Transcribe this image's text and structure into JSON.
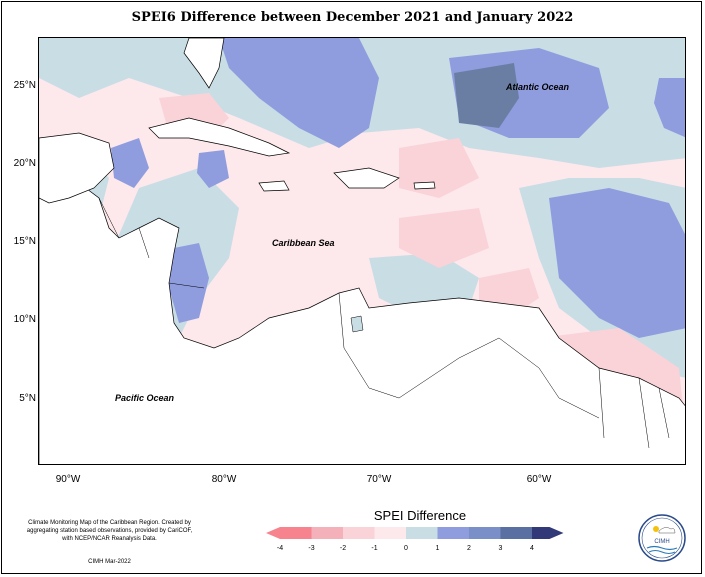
{
  "title": "SPEI6 Difference between December 2021 and January 2022",
  "map": {
    "lat_labels": [
      "25°N",
      "20°N",
      "15°N",
      "10°N",
      "5°N"
    ],
    "lon_labels": [
      "90°W",
      "80°W",
      "70°W",
      "60°W"
    ],
    "ocean_labels": {
      "atlantic": "Atlantic Ocean",
      "caribbean": "Caribbean Sea",
      "pacific": "Pacific Ocean"
    }
  },
  "legend": {
    "title": "SPEI Difference",
    "ticks": [
      "-4",
      "-3",
      "-2",
      "-1",
      "0",
      "1",
      "2",
      "3",
      "4"
    ],
    "colors": [
      "#f6838e",
      "#f4b1b9",
      "#f9d3d8",
      "#fde8eb",
      "#c9dde5",
      "#8f9ddf",
      "#7a8ec7",
      "#5a6fa2",
      "#313978"
    ]
  },
  "credit": {
    "text": "Climate Monitoring Map of the Caribbean Region. Created by aggregating station based observations, provided by CariCOF, with NCEP/NCAR Reanalysis Data.",
    "date": "CIMH Mar-2022"
  },
  "logo": {
    "text": "CIMH"
  }
}
